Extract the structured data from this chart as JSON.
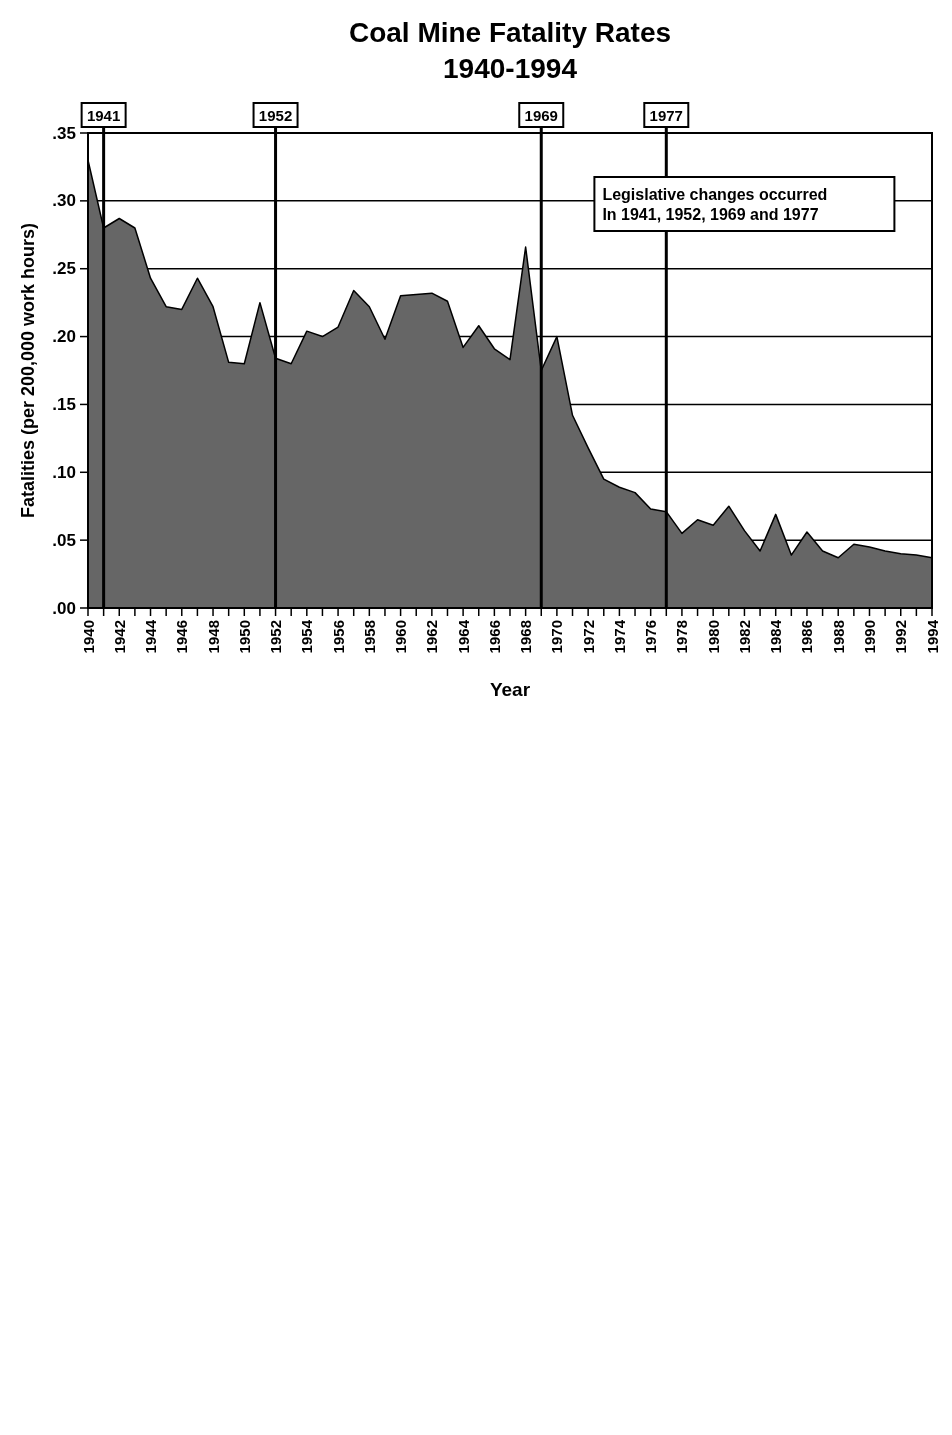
{
  "chart_data": {
    "type": "area",
    "title": "Coal Mine Fatality Rates",
    "subtitle": "1940-1994",
    "xlabel": "Year",
    "ylabel": "Fatalities (per 200,000 work hours)",
    "x": [
      1940,
      1941,
      1942,
      1943,
      1944,
      1945,
      1946,
      1947,
      1948,
      1949,
      1950,
      1951,
      1952,
      1953,
      1954,
      1955,
      1956,
      1957,
      1958,
      1959,
      1960,
      1961,
      1962,
      1963,
      1964,
      1965,
      1966,
      1967,
      1968,
      1969,
      1970,
      1971,
      1972,
      1973,
      1974,
      1975,
      1976,
      1977,
      1978,
      1979,
      1980,
      1981,
      1982,
      1983,
      1984,
      1985,
      1986,
      1987,
      1988,
      1989,
      1990,
      1991,
      1992,
      1993,
      1994
    ],
    "series": [
      {
        "color": "#666666",
        "values": [
          0.33,
          0.28,
          0.287,
          0.28,
          0.243,
          0.222,
          0.22,
          0.243,
          0.222,
          0.181,
          0.18,
          0.225,
          0.184,
          0.18,
          0.204,
          0.2,
          0.207,
          0.234,
          0.222,
          0.198,
          0.23,
          0.231,
          0.232,
          0.226,
          0.192,
          0.208,
          0.191,
          0.183,
          0.266,
          0.175,
          0.2,
          0.142,
          0.118,
          0.095,
          0.089,
          0.085,
          0.073,
          0.071,
          0.055,
          0.065,
          0.061,
          0.075,
          0.057,
          0.042,
          0.069,
          0.039,
          0.056,
          0.042,
          0.037,
          0.047,
          0.045,
          0.042,
          0.04,
          0.039,
          0.037
        ]
      }
    ],
    "xlim": [
      1940,
      1994
    ],
    "xticks": [
      1940,
      {
        "value": 1941,
        "label": null
      },
      1942,
      {
        "value": 1943,
        "label": null
      },
      1944,
      {
        "value": 1945,
        "label": null
      },
      1946,
      {
        "value": 1947,
        "label": null
      },
      1948,
      {
        "value": 1949,
        "label": null
      },
      1950,
      {
        "value": 1951,
        "label": null
      },
      1952,
      {
        "value": 1953,
        "label": null
      },
      1954,
      {
        "value": 1955,
        "label": null
      },
      1956,
      {
        "value": 1957,
        "label": null
      },
      1958,
      {
        "value": 1959,
        "label": null
      },
      1960,
      {
        "value": 1961,
        "label": null
      },
      1962,
      {
        "value": 1963,
        "label": null
      },
      1964,
      {
        "value": 1965,
        "label": null
      },
      1966,
      {
        "value": 1967,
        "label": null
      },
      1968,
      {
        "value": 1969,
        "label": null
      },
      1970,
      {
        "value": 1971,
        "label": null
      },
      1972,
      {
        "value": 1973,
        "label": null
      },
      1974,
      {
        "value": 1975,
        "label": null
      },
      1976,
      {
        "value": 1977,
        "label": null
      },
      1978,
      {
        "value": 1979,
        "label": null
      },
      1980,
      {
        "value": 1981,
        "label": null
      },
      1982,
      {
        "value": 1983,
        "label": null
      },
      1984,
      {
        "value": 1985,
        "label": null
      },
      1986,
      {
        "value": 1987,
        "label": null
      },
      1988,
      {
        "value": 1989,
        "label": null
      },
      1990,
      {
        "value": 1991,
        "label": null
      },
      1992,
      {
        "value": 1993,
        "label": null
      },
      1994
    ],
    "ylim": [
      0,
      0.35
    ],
    "yticks": [
      {
        "value": 0,
        "label": ".00"
      },
      {
        "value": 0.05,
        "label": ".05"
      },
      {
        "value": 0.1,
        "label": ".10"
      },
      {
        "value": 0.15,
        "label": ".15"
      },
      {
        "value": 0.2,
        "label": ".20"
      },
      {
        "value": 0.25,
        "label": ".25"
      },
      {
        "value": 0.3,
        "label": ".30"
      },
      {
        "value": 0.35,
        "label": ".35"
      }
    ],
    "grid": "y",
    "ref_lines": [
      {
        "axis": "x",
        "value": 1941,
        "label": "1941"
      },
      {
        "axis": "x",
        "value": 1952,
        "label": "1952"
      },
      {
        "axis": "x",
        "value": 1969,
        "label": "1969"
      },
      {
        "axis": "x",
        "value": 1977,
        "label": "1977"
      }
    ],
    "annotations": [
      "Legislative changes occurred In 1941, 1952, 1969 and 1977"
    ]
  }
}
